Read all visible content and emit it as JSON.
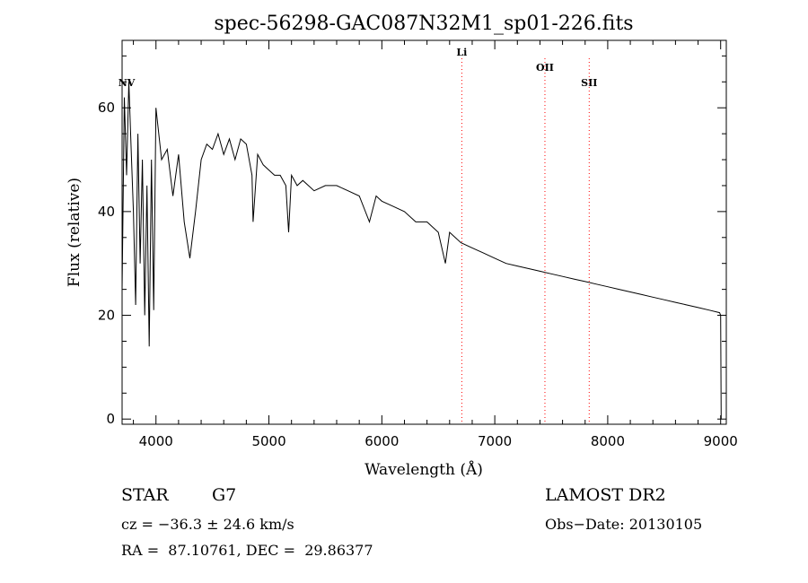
{
  "chart_data": {
    "type": "line",
    "title": "spec-56298-GAC087N32M1_sp01-226.fits",
    "xlabel": "Wavelength (Å)",
    "ylabel": "Flux (relative)",
    "xlim": [
      3700,
      9050
    ],
    "ylim": [
      -1,
      73
    ],
    "x_ticks": [
      4000,
      5000,
      6000,
      7000,
      8000,
      9000
    ],
    "x_tick_labels": [
      "4000",
      "5000",
      "6000",
      "7000",
      "8000",
      "9000"
    ],
    "y_ticks": [
      0,
      20,
      40,
      60
    ],
    "y_tick_labels": [
      "0",
      "20",
      "40",
      "60"
    ],
    "grid": false,
    "series": [
      {
        "color": "#000000",
        "x": [
          3700,
          3720,
          3740,
          3760,
          3780,
          3800,
          3820,
          3840,
          3860,
          3880,
          3900,
          3920,
          3940,
          3960,
          3980,
          4000,
          4050,
          4100,
          4150,
          4200,
          4250,
          4300,
          4350,
          4400,
          4450,
          4500,
          4550,
          4600,
          4650,
          4700,
          4750,
          4800,
          4850,
          4860,
          4900,
          4950,
          5000,
          5050,
          5100,
          5150,
          5175,
          5200,
          5250,
          5300,
          5400,
          5500,
          5600,
          5700,
          5800,
          5890,
          5950,
          6000,
          6100,
          6200,
          6300,
          6400,
          6500,
          6563,
          6600,
          6700,
          6800,
          6900,
          7000,
          7100,
          7200,
          7300,
          7400,
          7500,
          7600,
          7700,
          7800,
          7900,
          8000,
          8100,
          8200,
          8300,
          8400,
          8500,
          8600,
          8700,
          8800,
          8900,
          8990,
          9000,
          9005
        ],
        "y": [
          25,
          62,
          47,
          65,
          52,
          40,
          22,
          55,
          30,
          50,
          20,
          45,
          14,
          50,
          21,
          60,
          50,
          52,
          43,
          51,
          38,
          31,
          40,
          50,
          53,
          52,
          55,
          51,
          54,
          50,
          54,
          53,
          47,
          38,
          51,
          49,
          48,
          47,
          47,
          45,
          36,
          47,
          45,
          46,
          44,
          45,
          45,
          44,
          43,
          38,
          43,
          42,
          41,
          40,
          38,
          38,
          36,
          30,
          36,
          34,
          33,
          32,
          31,
          30,
          29.5,
          29,
          28.5,
          28,
          27.5,
          27,
          26.5,
          26,
          25.5,
          25,
          24.5,
          24,
          23.5,
          23,
          22.5,
          22,
          21.5,
          21,
          20.5,
          20,
          0
        ]
      }
    ],
    "annotations": [
      {
        "label": "NV",
        "x": 3740
      },
      {
        "label": "Li",
        "x": 6708,
        "line": true
      },
      {
        "label": "OII",
        "x": 7444,
        "line": true
      },
      {
        "label": "SII",
        "x": 7836,
        "line": true
      }
    ],
    "line_color": "#ff0000"
  },
  "info": {
    "object_class": "STAR",
    "subclass": "G7",
    "survey": "LAMOST DR2",
    "cz": "cz = −36.3 ± 24.6 km/s",
    "obs_date": "Obs−Date: 20130105",
    "coords": "RA =  87.10761, DEC =  29.86377"
  }
}
